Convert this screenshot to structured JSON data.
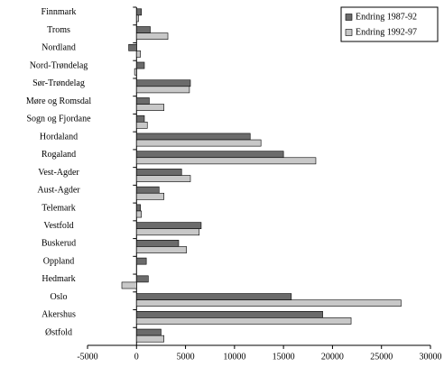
{
  "chart_data": {
    "type": "hbar",
    "categories": [
      "Finnmark",
      "Troms",
      "Nordland",
      "Nord-Trøndelag",
      "Sør-Trøndelag",
      "Møre og Romsdal",
      "Sogn og Fjordane",
      "Hordaland",
      "Rogaland",
      "Vest-Agder",
      "Aust-Agder",
      "Telemark",
      "Vestfold",
      "Buskerud",
      "Oppland",
      "Hedmark",
      "Oslo",
      "Akershus",
      "Østfold"
    ],
    "series": [
      {
        "name": "Endring 1987-92",
        "color": "#6b6b6b",
        "values": [
          500,
          1400,
          -800,
          800,
          5500,
          1300,
          800,
          11600,
          15000,
          4600,
          2300,
          400,
          6600,
          4300,
          1000,
          1200,
          15800,
          19000,
          2500
        ]
      },
      {
        "name": "Endring 1992-97",
        "color": "#c8c8c8",
        "values": [
          200,
          3200,
          400,
          -200,
          5400,
          2800,
          1100,
          12700,
          18300,
          5500,
          2800,
          500,
          6400,
          5100,
          0,
          -1500,
          27000,
          21900,
          2800
        ]
      }
    ],
    "xlim": [
      -5000,
      30000
    ],
    "xticks": [
      -5000,
      0,
      5000,
      10000,
      15000,
      20000,
      25000,
      30000
    ],
    "legend": "top-right"
  }
}
